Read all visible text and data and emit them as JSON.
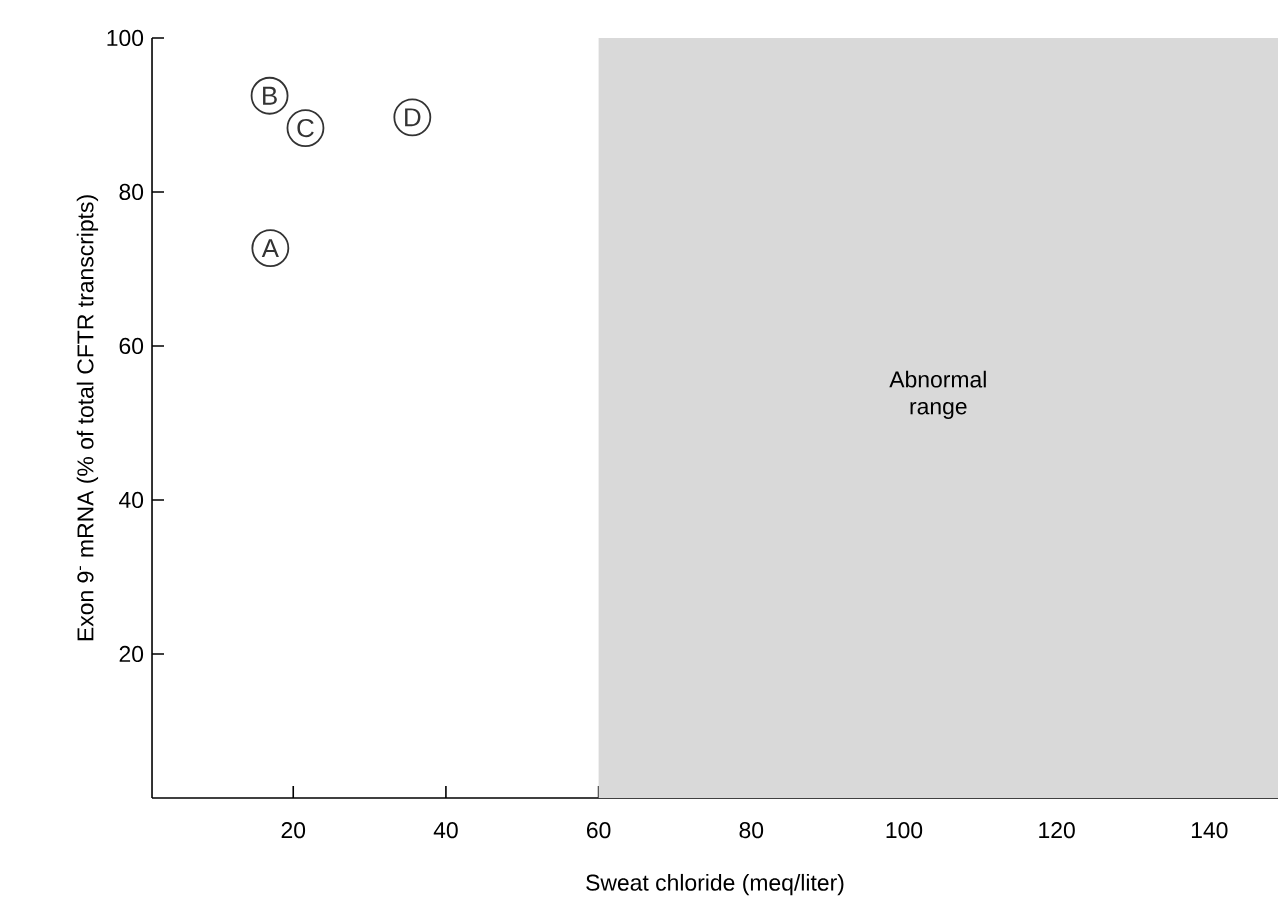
{
  "chart_data": {
    "type": "scatter",
    "xlabel": "Sweat chloride (meq/liter)",
    "ylabel": "Exon 9$^{-}$ mRNA (% of total CFTR transcripts)",
    "x": [
      17.0,
      16.9,
      21.6,
      35.6
    ],
    "values": [
      72.7,
      92.5,
      88.3,
      89.7
    ],
    "color": "#333333",
    "marker": "circle",
    "xlim": [
      1.5,
      149
    ],
    "ylim": [
      1.3,
      100
    ],
    "xticks": [
      20,
      40,
      60,
      80,
      100,
      120,
      140
    ],
    "yticks": [
      20,
      40,
      60,
      80,
      100
    ],
    "bands": [
      {
        "axis": "x",
        "from": 60,
        "to": 149,
        "label": "Abnormal range",
        "color": "#d9d9d9"
      }
    ],
    "annotations": [
      {
        "text": "A",
        "x": 17.0,
        "y": 72.7
      },
      {
        "text": "B",
        "x": 16.9,
        "y": 92.5
      },
      {
        "text": "C",
        "x": 21.6,
        "y": 88.3
      },
      {
        "text": "D",
        "x": 35.6,
        "y": 89.7
      }
    ],
    "grid": false
  }
}
